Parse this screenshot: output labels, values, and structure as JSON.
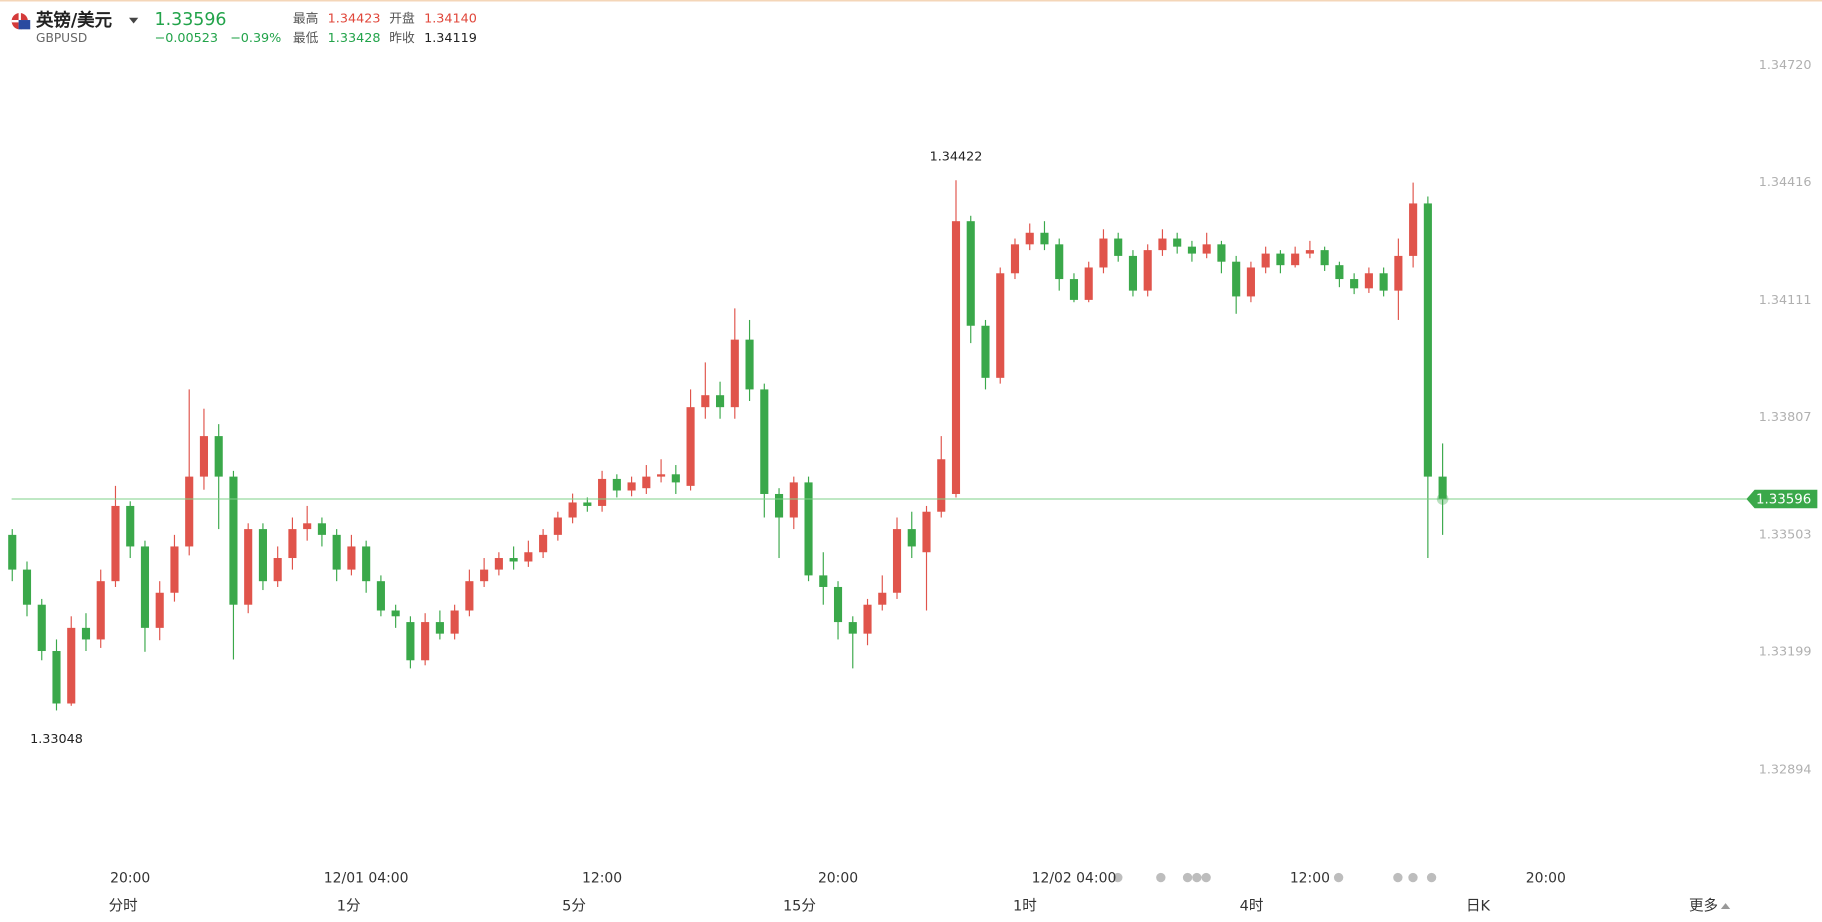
{
  "header": {
    "name": "英镑/美元",
    "symbol": "GBPUSD",
    "price": "1.33596",
    "change": "−0.00523",
    "change_pct": "−0.39%",
    "stats": [
      {
        "label": "最高",
        "value": "1.34423"
      },
      {
        "label": "开盘",
        "value": "1.34140"
      },
      {
        "label": "最低",
        "value": "1.33428"
      },
      {
        "label": "昨收",
        "value": "1.34119"
      }
    ]
  },
  "tabs": [
    "分时",
    "1分",
    "5分",
    "15分",
    "1时",
    "4时",
    "日K",
    "更多"
  ],
  "chart_data": {
    "type": "candlestick",
    "up_color": "#e0544b",
    "down_color": "#3aa84a",
    "price_line_color": "#7fd08a",
    "grid": false,
    "xlim": [
      -0.5,
      118
    ],
    "ylim": [
      1.3266,
      1.348
    ],
    "xticks": [
      {
        "value": 8,
        "label": "20:00"
      },
      {
        "value": 24,
        "label": "12/01 04:00"
      },
      {
        "value": 40,
        "label": "12:00"
      },
      {
        "value": 56,
        "label": "20:00"
      },
      {
        "value": 72,
        "label": "12/02 04:00"
      },
      {
        "value": 88,
        "label": "12:00"
      },
      {
        "value": 104,
        "label": "20:00"
      }
    ],
    "yticks": [
      {
        "value": 1.3472,
        "label": "1.34720"
      },
      1.34416,
      1.34111,
      1.33807,
      1.33503,
      1.33199,
      1.32894
    ],
    "open": [
      1.33503,
      1.33413,
      1.33322,
      1.33202,
      1.33066,
      1.33262,
      1.33232,
      1.33383,
      1.33578,
      1.33473,
      1.33262,
      1.33353,
      1.33473,
      1.33654,
      1.33759,
      1.33654,
      1.33322,
      1.33518,
      1.33383,
      1.33443,
      1.33518,
      1.33533,
      1.33503,
      1.33413,
      1.33473,
      1.33383,
      1.33307,
      1.33277,
      1.33178,
      1.33277,
      1.33247,
      1.33307,
      1.33383,
      1.33413,
      1.33443,
      1.33434,
      1.33458,
      1.33503,
      1.33548,
      1.33587,
      1.33578,
      1.33648,
      1.33618,
      1.33624,
      1.33654,
      1.3366,
      1.3363,
      1.33834,
      1.33865,
      1.33834,
      1.34009,
      1.3388,
      1.33609,
      1.33548,
      1.33639,
      1.33398,
      1.33368,
      1.33277,
      1.33247,
      1.33322,
      1.33353,
      1.33518,
      1.33458,
      1.33563,
      1.33609,
      1.34316,
      1.34045,
      1.3391,
      1.34181,
      1.34256,
      1.34286,
      1.34256,
      1.34166,
      1.34112,
      1.34196,
      1.34271,
      1.34226,
      1.34136,
      1.34241,
      1.34271,
      1.3425,
      1.34232,
      1.34256,
      1.34211,
      1.34121,
      1.34196,
      1.34232,
      1.34202,
      1.34232,
      1.34241,
      1.34202,
      1.34166,
      1.34142,
      1.34181,
      1.34136,
      1.34226,
      1.34362,
      1.33654
    ],
    "high": [
      1.33518,
      1.33434,
      1.33337,
      1.33232,
      1.33292,
      1.333,
      1.33413,
      1.3363,
      1.3359,
      1.33488,
      1.33383,
      1.33503,
      1.3388,
      1.3383,
      1.3379,
      1.33669,
      1.33533,
      1.33533,
      1.33473,
      1.33548,
      1.33578,
      1.33548,
      1.33518,
      1.33503,
      1.33488,
      1.33398,
      1.33322,
      1.33292,
      1.333,
      1.33307,
      1.33322,
      1.33413,
      1.33443,
      1.33458,
      1.33473,
      1.33488,
      1.33518,
      1.33563,
      1.3361,
      1.336,
      1.33669,
      1.3366,
      1.33654,
      1.33684,
      1.33699,
      1.33684,
      1.3388,
      1.3395,
      1.339,
      1.3409,
      1.3406,
      1.33895,
      1.33624,
      1.33654,
      1.33654,
      1.33458,
      1.33383,
      1.33292,
      1.33337,
      1.33398,
      1.33548,
      1.33563,
      1.33578,
      1.33759,
      1.34422,
      1.3433,
      1.3406,
      1.34196,
      1.34271,
      1.3431,
      1.34316,
      1.34271,
      1.34181,
      1.34211,
      1.34295,
      1.34286,
      1.34241,
      1.34256,
      1.34295,
      1.34286,
      1.34265,
      1.34286,
      1.34265,
      1.34226,
      1.34211,
      1.3425,
      1.34241,
      1.3425,
      1.34265,
      1.3425,
      1.34211,
      1.34181,
      1.34196,
      1.34196,
      1.34271,
      1.34416,
      1.3438,
      1.3374
    ],
    "low": [
      1.33383,
      1.33292,
      1.33178,
      1.33048,
      1.3306,
      1.33202,
      1.3321,
      1.33368,
      1.33443,
      1.332,
      1.3323,
      1.3333,
      1.3345,
      1.3362,
      1.33518,
      1.3318,
      1.333,
      1.3336,
      1.33368,
      1.33413,
      1.33488,
      1.33473,
      1.33383,
      1.33398,
      1.33353,
      1.33292,
      1.33262,
      1.33157,
      1.33165,
      1.33232,
      1.33232,
      1.33292,
      1.33368,
      1.33398,
      1.33413,
      1.3342,
      1.33443,
      1.33488,
      1.33533,
      1.33563,
      1.33563,
      1.336,
      1.33603,
      1.33609,
      1.33639,
      1.33609,
      1.33618,
      1.33804,
      1.33804,
      1.33804,
      1.3385,
      1.33548,
      1.33443,
      1.33518,
      1.33383,
      1.33322,
      1.33232,
      1.33157,
      1.33217,
      1.33307,
      1.33337,
      1.33443,
      1.33307,
      1.33548,
      1.336,
      1.34,
      1.3388,
      1.33895,
      1.34166,
      1.34241,
      1.34241,
      1.34136,
      1.34106,
      1.34106,
      1.34181,
      1.34211,
      1.34121,
      1.34121,
      1.34226,
      1.34232,
      1.34211,
      1.3422,
      1.34181,
      1.34076,
      1.34106,
      1.34181,
      1.34181,
      1.34196,
      1.3422,
      1.34187,
      1.34145,
      1.34127,
      1.3413,
      1.34121,
      1.3406,
      1.34196,
      1.33443,
      1.33503
    ],
    "close": [
      1.33413,
      1.33322,
      1.33202,
      1.33066,
      1.33262,
      1.33232,
      1.33383,
      1.33578,
      1.33473,
      1.33262,
      1.33353,
      1.33473,
      1.33654,
      1.33759,
      1.33654,
      1.33322,
      1.33518,
      1.33383,
      1.33443,
      1.33518,
      1.33533,
      1.33503,
      1.33413,
      1.33473,
      1.33383,
      1.33307,
      1.33292,
      1.33178,
      1.33277,
      1.33247,
      1.33307,
      1.33383,
      1.33413,
      1.33443,
      1.33434,
      1.33458,
      1.33503,
      1.33548,
      1.33587,
      1.33578,
      1.33648,
      1.33618,
      1.33639,
      1.33654,
      1.3366,
      1.33639,
      1.33834,
      1.33865,
      1.33834,
      1.34009,
      1.3388,
      1.33609,
      1.33548,
      1.33639,
      1.33398,
      1.33368,
      1.33277,
      1.33247,
      1.33322,
      1.33353,
      1.33518,
      1.33473,
      1.33563,
      1.33699,
      1.34316,
      1.34045,
      1.3391,
      1.34181,
      1.34256,
      1.34286,
      1.34256,
      1.34166,
      1.34112,
      1.34196,
      1.34271,
      1.34226,
      1.34136,
      1.34241,
      1.34271,
      1.3425,
      1.34232,
      1.34256,
      1.34211,
      1.34121,
      1.34196,
      1.34232,
      1.34202,
      1.34232,
      1.34241,
      1.34202,
      1.34166,
      1.34142,
      1.34181,
      1.34136,
      1.34226,
      1.34362,
      1.33654,
      1.33596
    ]
  }
}
